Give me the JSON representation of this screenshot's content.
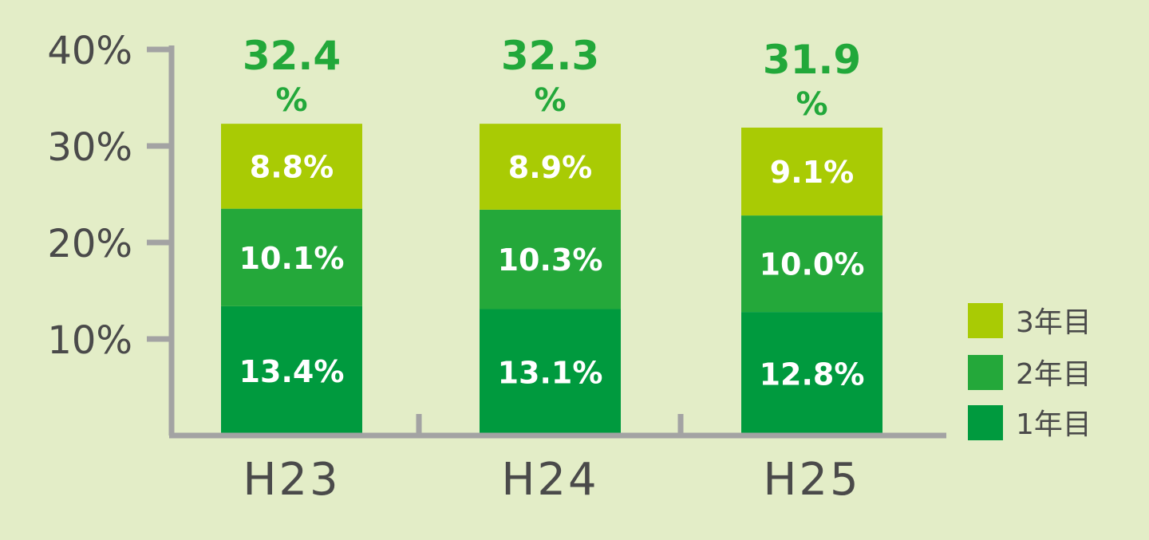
{
  "chart_data": {
    "type": "bar",
    "stacked": true,
    "categories": [
      "H23",
      "H24",
      "H25"
    ],
    "series": [
      {
        "name": "1年目",
        "values": [
          13.4,
          13.1,
          12.8
        ],
        "labels": [
          "13.4%",
          "13.1%",
          "12.8%"
        ],
        "color": "#009a3e"
      },
      {
        "name": "2年目",
        "values": [
          10.1,
          10.3,
          10.0
        ],
        "labels": [
          "10.1%",
          "10.3%",
          "10.0%"
        ],
        "color": "#24a83a"
      },
      {
        "name": "3年目",
        "values": [
          8.8,
          8.9,
          9.1
        ],
        "labels": [
          "8.8%",
          "8.9%",
          "9.1%"
        ],
        "color": "#a9cb04"
      }
    ],
    "totals": [
      {
        "value": "32.4",
        "unit": "%"
      },
      {
        "value": "32.3",
        "unit": "%"
      },
      {
        "value": "31.9",
        "unit": "%"
      }
    ],
    "yticks": [
      "10%",
      "20%",
      "30%",
      "40%"
    ],
    "ylim": [
      0,
      40
    ],
    "title": "",
    "xlabel": "",
    "ylabel": "",
    "grid": false,
    "legend_position": "bottom-right",
    "legend_order": [
      "3年目",
      "2年目",
      "1年目"
    ],
    "colors": {
      "axis": "#a3a3a3",
      "text": "#4a4a4a",
      "total": "#22a83a",
      "background": "#e3edc7"
    }
  }
}
